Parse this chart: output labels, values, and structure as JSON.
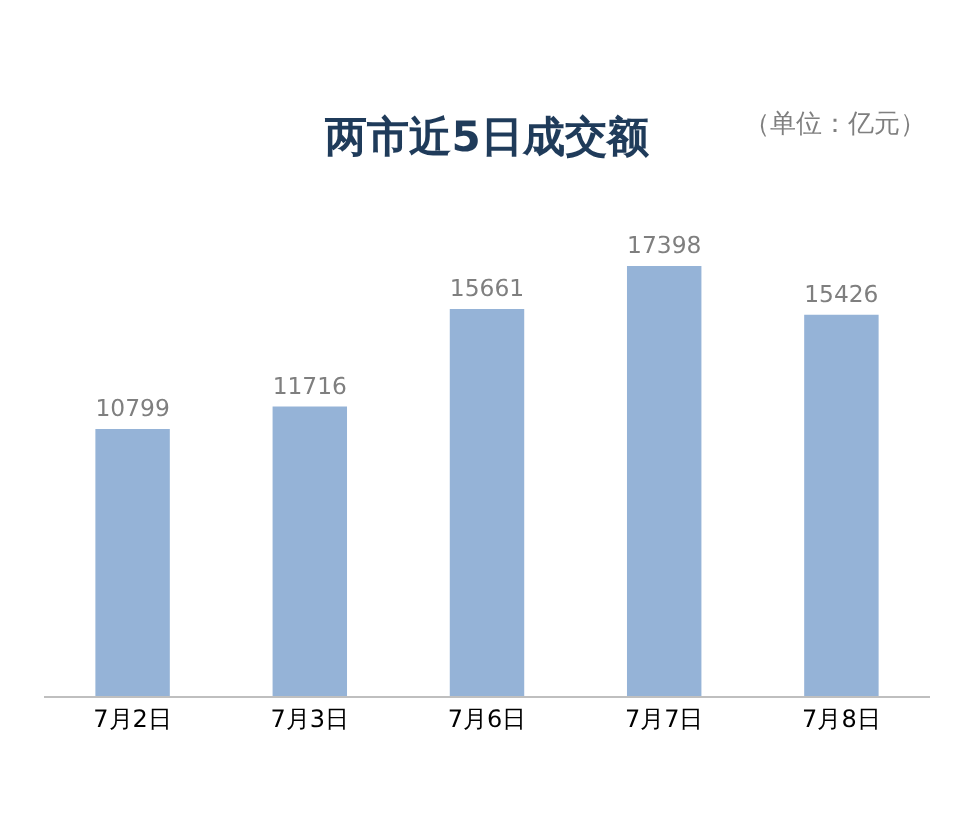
{
  "chart_data": {
    "type": "bar",
    "title": "两市近5日成交额",
    "subtitle": "（单位：亿元）",
    "categories": [
      "7月2日",
      "7月3日",
      "7月6日",
      "7月7日",
      "7月8日"
    ],
    "values": [
      10799,
      11716,
      15661,
      17398,
      15426
    ],
    "color": "#95b3d7",
    "data_labels": true
  }
}
